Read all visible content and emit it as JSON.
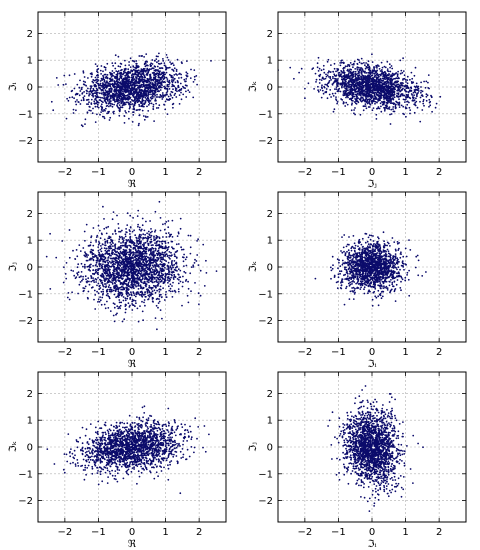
{
  "chart_data": [
    {
      "type": "scatter",
      "xlabel": "ℜ",
      "ylabel": "ℑᵢ",
      "xlim": [
        -2.8,
        2.8
      ],
      "ylim": [
        -2.8,
        2.8
      ],
      "xticks": [
        -2,
        -1,
        0,
        1,
        2
      ],
      "yticks": [
        -2,
        -1,
        0,
        1,
        2
      ],
      "grid": true,
      "marker_color": "#0b0b6b",
      "distribution": {
        "center": [
          0.0,
          0.0
        ],
        "std_x": 0.75,
        "std_y": 0.45,
        "correlation": 0.25,
        "n_points": 1800
      }
    },
    {
      "type": "scatter",
      "xlabel": "ℑⱼ",
      "ylabel": "ℑₖ",
      "xlim": [
        -2.8,
        2.8
      ],
      "ylim": [
        -2.8,
        2.8
      ],
      "xticks": [
        -2,
        -1,
        0,
        1,
        2
      ],
      "yticks": [
        -2,
        -1,
        0,
        1,
        2
      ],
      "grid": true,
      "marker_color": "#0b0b6b",
      "distribution": {
        "center": [
          0.0,
          0.0
        ],
        "std_x": 0.7,
        "std_y": 0.4,
        "correlation": -0.3,
        "n_points": 1800
      }
    },
    {
      "type": "scatter",
      "xlabel": "ℜ",
      "ylabel": "ℑⱼ",
      "xlim": [
        -2.8,
        2.8
      ],
      "ylim": [
        -2.8,
        2.8
      ],
      "xticks": [
        -2,
        -1,
        0,
        1,
        2
      ],
      "yticks": [
        -2,
        -1,
        0,
        1,
        2
      ],
      "grid": true,
      "marker_color": "#0b0b6b",
      "distribution": {
        "center": [
          0.0,
          0.0
        ],
        "std_x": 0.75,
        "std_y": 0.7,
        "correlation": 0.0,
        "n_points": 2200
      }
    },
    {
      "type": "scatter",
      "xlabel": "ℑᵢ",
      "ylabel": "ℑₖ",
      "xlim": [
        -2.8,
        2.8
      ],
      "ylim": [
        -2.8,
        2.8
      ],
      "xticks": [
        -2,
        -1,
        0,
        1,
        2
      ],
      "yticks": [
        -2,
        -1,
        0,
        1,
        2
      ],
      "grid": true,
      "marker_color": "#0b0b6b",
      "distribution": {
        "center": [
          0.0,
          0.0
        ],
        "std_x": 0.45,
        "std_y": 0.45,
        "correlation": 0.0,
        "n_points": 1500
      }
    },
    {
      "type": "scatter",
      "xlabel": "ℜ",
      "ylabel": "ℑₖ",
      "xlim": [
        -2.8,
        2.8
      ],
      "ylim": [
        -2.8,
        2.8
      ],
      "xticks": [
        -2,
        -1,
        0,
        1,
        2
      ],
      "yticks": [
        -2,
        -1,
        0,
        1,
        2
      ],
      "grid": true,
      "marker_color": "#0b0b6b",
      "distribution": {
        "center": [
          0.0,
          0.0
        ],
        "std_x": 0.75,
        "std_y": 0.45,
        "correlation": 0.25,
        "n_points": 1800
      }
    },
    {
      "type": "scatter",
      "xlabel": "ℑᵢ",
      "ylabel": "ℑⱼ",
      "xlim": [
        -2.8,
        2.8
      ],
      "ylim": [
        -2.8,
        2.8
      ],
      "xticks": [
        -2,
        -1,
        0,
        1,
        2
      ],
      "yticks": [
        -2,
        -1,
        0,
        1,
        2
      ],
      "grid": true,
      "marker_color": "#0b0b6b",
      "distribution": {
        "center": [
          0.0,
          0.0
        ],
        "std_x": 0.4,
        "std_y": 0.7,
        "correlation": -0.15,
        "n_points": 1800
      }
    }
  ]
}
